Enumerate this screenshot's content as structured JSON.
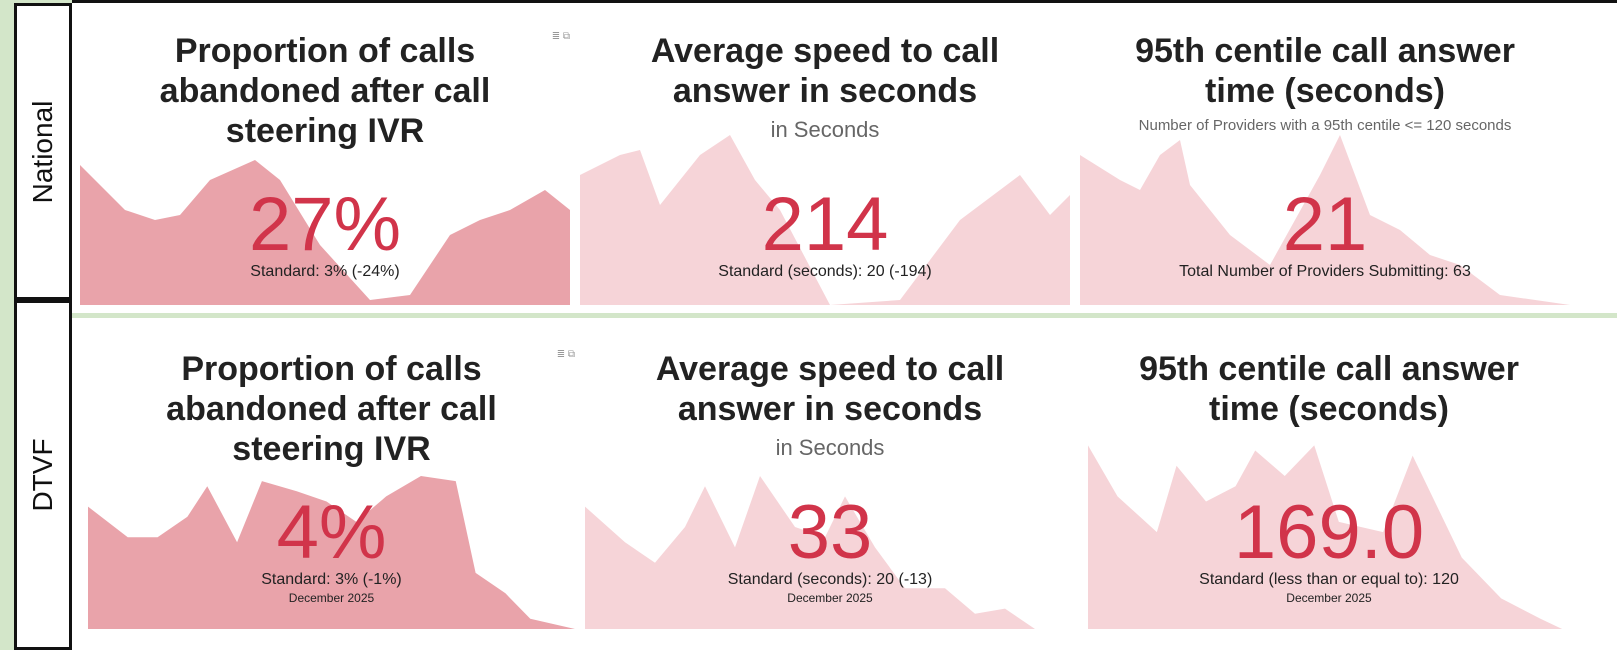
{
  "rows": [
    {
      "label": "National",
      "cards": [
        {
          "title": "Proportion of calls abandoned after call steering IVR",
          "value": "27%",
          "standard": "Standard: 3% (-24%)"
        },
        {
          "title": "Average speed to call answer in seconds",
          "subtitle": "in Seconds",
          "value": "214",
          "standard": "Standard (seconds): 20 (-194)"
        },
        {
          "title": "95th centile call answer time (seconds)",
          "subtitle": "Number of Providers with a 95th centile <= 120 seconds",
          "value": "21",
          "standard": "Total Number of Providers Submitting: 63"
        }
      ]
    },
    {
      "label": "DTVF",
      "cards": [
        {
          "title": "Proportion of calls abandoned after call steering IVR",
          "value": "4%",
          "standard": "Standard: 3% (-1%)",
          "date": "December 2025"
        },
        {
          "title": "Average speed to call answer in seconds",
          "subtitle": "in Seconds",
          "value": "33",
          "standard": "Standard (seconds): 20 (-13)",
          "date": "December 2025"
        },
        {
          "title": "95th centile call answer time (seconds)",
          "value": "169.0",
          "standard": "Standard (less than or equal to): 120",
          "date": "December 2025"
        }
      ]
    }
  ]
}
